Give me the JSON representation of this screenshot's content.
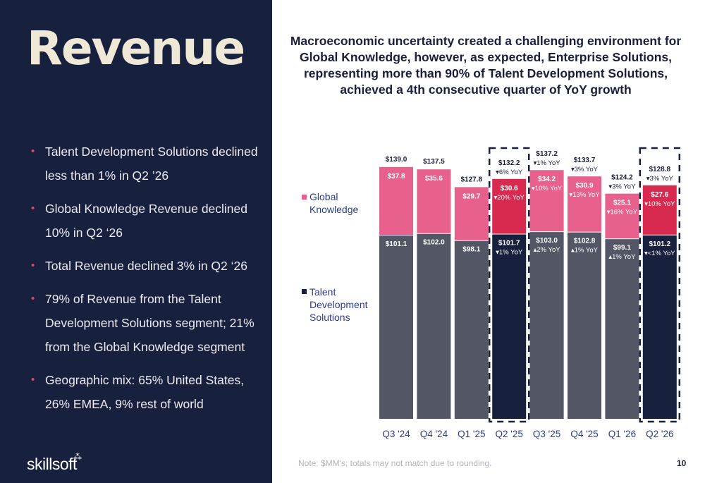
{
  "slide": {
    "title": "Revenue",
    "headline": "Macroeconomic uncertainty created a challenging environment for Global Knowledge, however, as expected, Enterprise Solutions, representing more than 90% of Talent Development Solutions, achieved a 4th consecutive quarter of YoY growth",
    "bullets": [
      "Talent Development Solutions declined less than 1% in Q2 ’26",
      "Global Knowledge Revenue declined 10% in Q2 ‘26",
      "Total Revenue declined 3% in Q2 ‘26",
      "79% of Revenue from the Talent Development Solutions segment; 21% from the Global Knowledge segment",
      "Geographic mix: 65% United States, 26% EMEA, 9% rest of world"
    ],
    "logo_text": "skillsoft",
    "logo_mark": "⁂",
    "note": "Note: $MM's; totals may not match due to rounding.",
    "page_number": "10"
  },
  "colors": {
    "panel": "#17203d",
    "global_knowledge": "#e8618c",
    "talent_development": "#535765",
    "talent_development_highlight": "#17203d",
    "global_knowledge_highlight": "#d8294f",
    "bullet": "#e0476f",
    "legend_text": "#2e3c8c"
  },
  "legend": [
    {
      "label": "Global Knowledge",
      "color": "#e8618c"
    },
    {
      "label": "Talent Development Solutions",
      "color": "#17203d"
    }
  ],
  "chart_data": {
    "type": "bar",
    "stacked": true,
    "categories": [
      "Q3 '24",
      "Q4 '24",
      "Q1 '25",
      "Q2 '25",
      "Q3 '25",
      "Q4 '25",
      "Q1 '26",
      "Q2 '26"
    ],
    "series": [
      {
        "name": "Talent Development Solutions",
        "values": [
          101.1,
          102.0,
          98.1,
          101.7,
          103.0,
          102.8,
          99.1,
          101.2
        ],
        "labels": [
          "$101.1",
          "$102.0",
          "$98.1",
          "$101.7",
          "$103.0",
          "$102.8",
          "$99.1",
          "$101.2"
        ],
        "yoy": [
          "",
          "",
          "",
          "▾1% YoY",
          "▴2% YoY",
          "▴1% YoY",
          "▴1% YoY",
          "▾<1% YoY"
        ]
      },
      {
        "name": "Global Knowledge",
        "values": [
          37.8,
          35.6,
          29.7,
          30.6,
          34.2,
          30.9,
          25.1,
          27.6
        ],
        "labels": [
          "$37.8",
          "$35.6",
          "$29.7",
          "$30.6",
          "$34.2",
          "$30.9",
          "$25.1",
          "$27.6"
        ],
        "yoy": [
          "",
          "",
          "",
          "▾20% YoY",
          "▾10% YoY",
          "▾13% YoY",
          "▾16% YoY",
          "▾10% YoY"
        ]
      }
    ],
    "totals": [
      139.0,
      137.5,
      127.8,
      132.2,
      137.2,
      133.7,
      124.2,
      128.8
    ],
    "total_labels": [
      "$139.0",
      "$137.5",
      "$127.8",
      "$132.2",
      "$137.2",
      "$133.7",
      "$124.2",
      "$128.8"
    ],
    "total_yoy": [
      "",
      "",
      "",
      "▾6% YoY",
      "▾1% YoY",
      "▾3% YoY",
      "▾3% YoY",
      "▾3% YoY"
    ],
    "highlighted_categories": [
      "Q2 '25",
      "Q2 '26"
    ],
    "legend_position": "left",
    "grid": false
  }
}
